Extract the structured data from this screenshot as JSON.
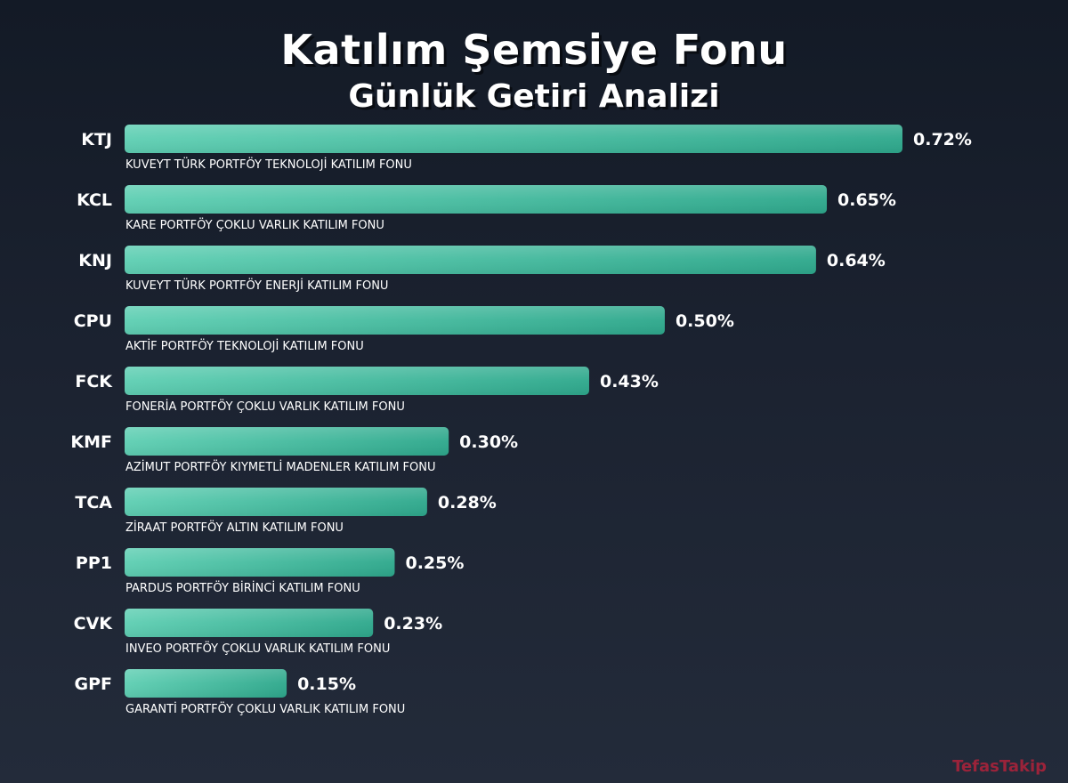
{
  "title": "Katılım Şemsiye Fonu",
  "subtitle": "Günlük Getiri Analizi",
  "watermark": "TefasTakip",
  "colors": {
    "bar_start": "#5fcfb3",
    "bar_end": "#2ea88c",
    "text": "#ffffff"
  },
  "chart_data": {
    "type": "bar",
    "orientation": "horizontal",
    "unit": "%",
    "title": "Katılım Şemsiye Fonu",
    "subtitle": "Günlük Getiri Analizi",
    "xlim": [
      0,
      0.72
    ],
    "grid": false,
    "categories": [
      "KTJ",
      "KCL",
      "KNJ",
      "CPU",
      "FCK",
      "KMF",
      "TCA",
      "PP1",
      "CVK",
      "GPF"
    ],
    "descriptions": [
      "KUVEYT TÜRK PORTFÖY TEKNOLOJİ KATILIM FONU",
      "KARE PORTFÖY ÇOKLU VARLIK KATILIM FONU",
      "KUVEYT TÜRK PORTFÖY ENERJİ KATILIM FONU",
      "AKTİF PORTFÖY TEKNOLOJİ KATILIM FONU",
      "FONERİA PORTFÖY ÇOKLU VARLIK KATILIM FONU",
      "AZİMUT PORTFÖY KIYMETLİ MADENLER KATILIM FONU",
      "ZİRAAT PORTFÖY ALTIN KATILIM FONU",
      "PARDUS PORTFÖY BİRİNCİ KATILIM FONU",
      "INVEO PORTFÖY ÇOKLU VARLIK KATILIM FONU",
      "GARANTİ PORTFÖY ÇOKLU VARLIK KATILIM FONU"
    ],
    "values": [
      0.72,
      0.65,
      0.64,
      0.5,
      0.43,
      0.3,
      0.28,
      0.25,
      0.23,
      0.15
    ],
    "value_labels": [
      "0.72%",
      "0.65%",
      "0.64%",
      "0.50%",
      "0.43%",
      "0.30%",
      "0.28%",
      "0.25%",
      "0.23%",
      "0.15%"
    ]
  }
}
